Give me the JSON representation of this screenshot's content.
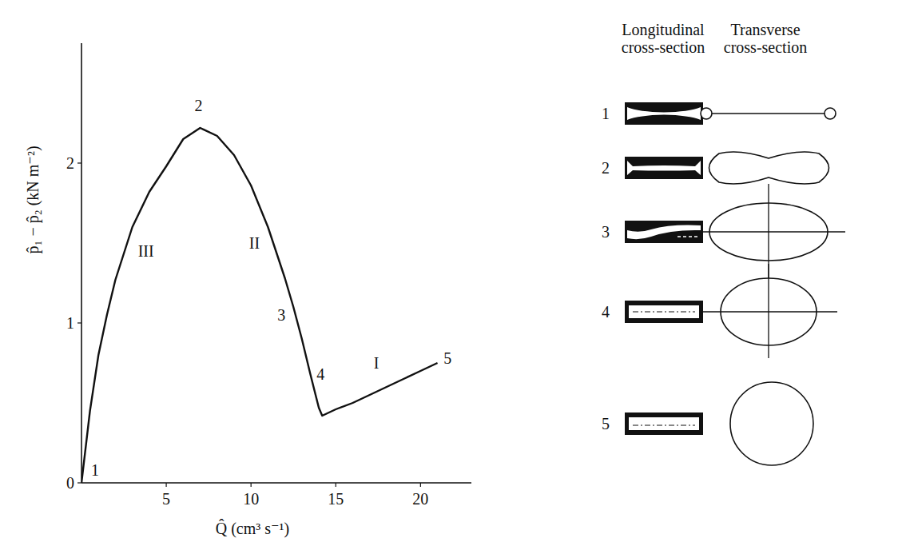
{
  "chart_data": {
    "type": "line",
    "color": "#111111",
    "x_label": "Q̂ (cm³ s⁻¹)",
    "y_label": "p̂₁ − p̂₂ (kN m⁻²)",
    "x": [
      0,
      0.5,
      1,
      1.5,
      2,
      3,
      4,
      5,
      6,
      7,
      8,
      9,
      10,
      11,
      12,
      12.5,
      13,
      13.5,
      14,
      14.2,
      15,
      16,
      17,
      18,
      19,
      20,
      21
    ],
    "values": [
      0,
      0.45,
      0.8,
      1.05,
      1.27,
      1.6,
      1.82,
      1.98,
      2.15,
      2.22,
      2.17,
      2.05,
      1.86,
      1.6,
      1.28,
      1.1,
      0.9,
      0.68,
      0.47,
      0.42,
      0.46,
      0.5,
      0.55,
      0.6,
      0.65,
      0.7,
      0.75
    ],
    "xlim": [
      0,
      23
    ],
    "ylim": [
      0,
      2.75
    ],
    "xticks": [
      5,
      10,
      15,
      20
    ],
    "yticks": [
      0,
      1,
      2
    ],
    "grid": false,
    "annotations": [
      {
        "text": "1",
        "x": 0.8,
        "y": 0.08
      },
      {
        "text": "III",
        "x": 3.8,
        "y": 1.45
      },
      {
        "text": "2",
        "x": 6.9,
        "y": 2.36
      },
      {
        "text": "II",
        "x": 10.2,
        "y": 1.5
      },
      {
        "text": "3",
        "x": 11.8,
        "y": 1.05
      },
      {
        "text": "4",
        "x": 14.1,
        "y": 0.68
      },
      {
        "text": "I",
        "x": 17.4,
        "y": 0.75
      },
      {
        "text": "5",
        "x": 21.6,
        "y": 0.78
      }
    ]
  },
  "diagram": {
    "headers": [
      "Longitudinal cross-section",
      "Transverse cross-section"
    ],
    "rows": [
      "1",
      "2",
      "3",
      "4",
      "5"
    ]
  }
}
